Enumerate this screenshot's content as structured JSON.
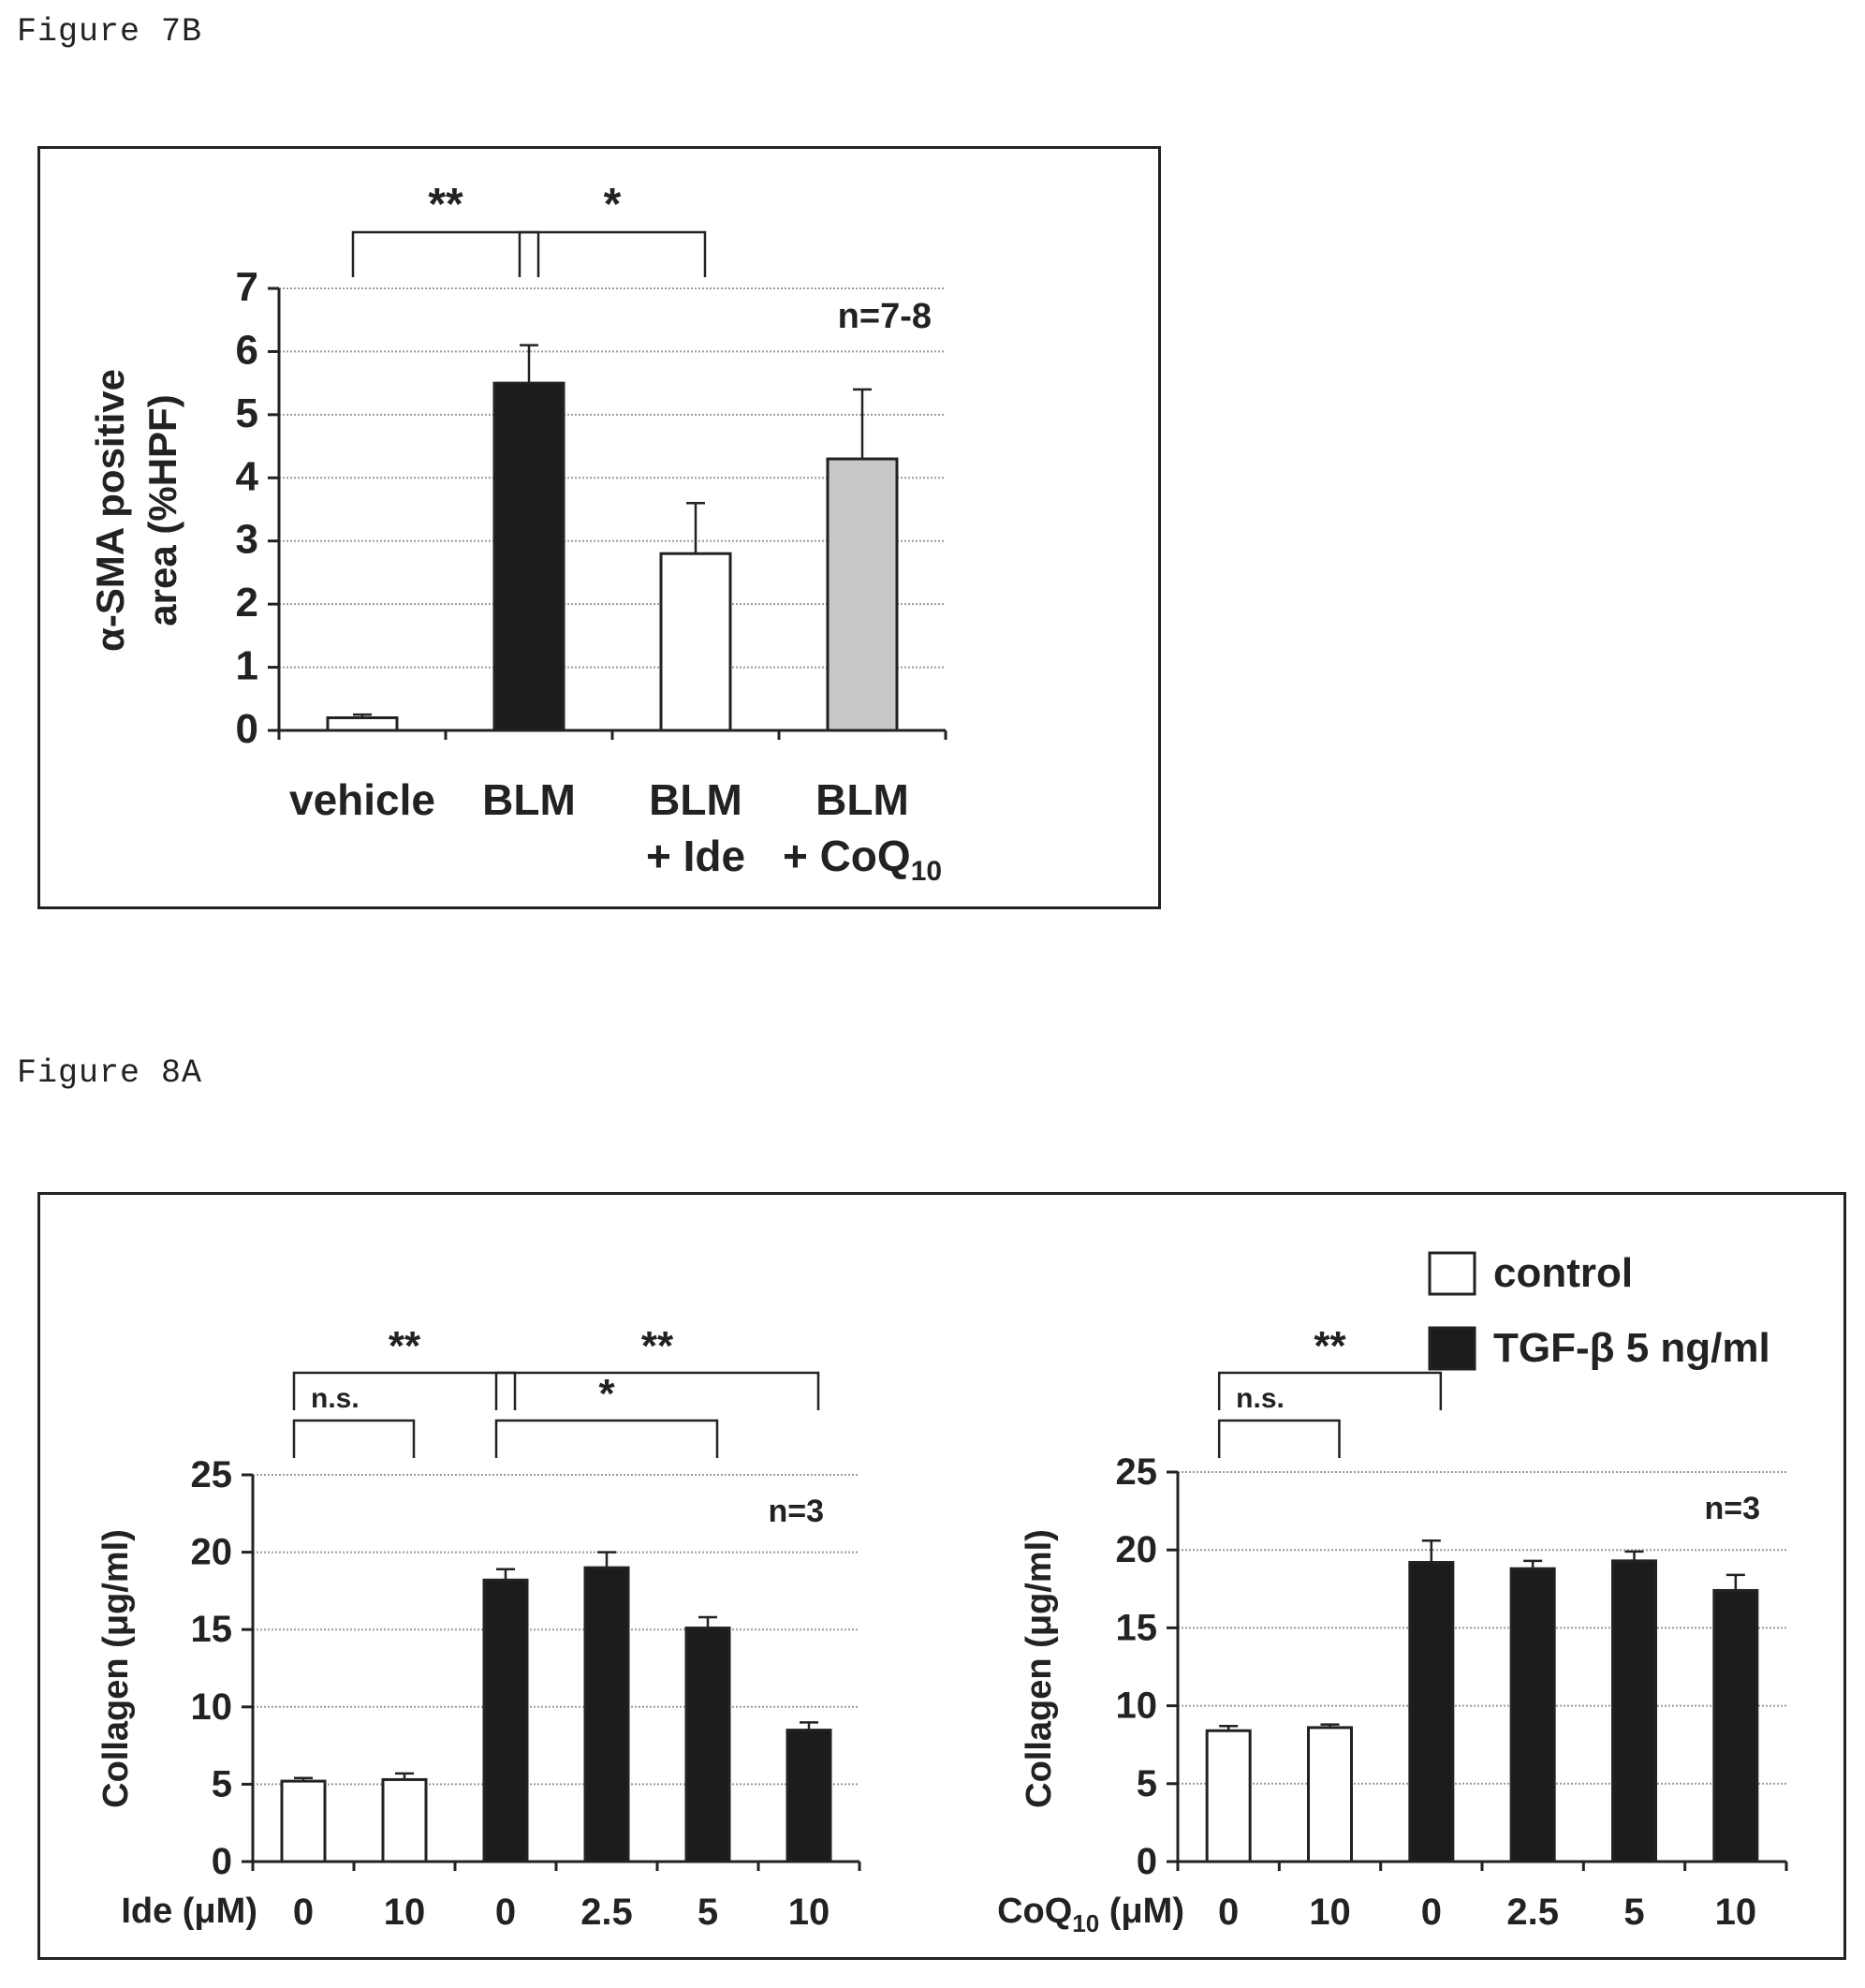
{
  "figures": [
    {
      "label": "Figure 7B"
    },
    {
      "label": "Figure 8A"
    }
  ],
  "chart_data": [
    {
      "type": "bar",
      "title": "",
      "ylabel_line1": "α-SMA positive",
      "ylabel_line2": "area (%HPF)",
      "ylim": [
        0,
        7
      ],
      "yticks": [
        "0",
        "1",
        "2",
        "3",
        "4",
        "5",
        "6",
        "7"
      ],
      "categories": [
        {
          "line1": "vehicle",
          "line2": ""
        },
        {
          "line1": "BLM",
          "line2": ""
        },
        {
          "line1": "BLM",
          "line2": "+ Ide"
        },
        {
          "line1": "BLM",
          "line2": "+ CoQ",
          "sub": "10"
        }
      ],
      "values": [
        0.2,
        5.5,
        2.8,
        4.3
      ],
      "errors": [
        0.05,
        0.6,
        0.8,
        1.1
      ],
      "colors": [
        "#ffffff",
        "#1c1c1c",
        "#ffffff",
        "#c8c8c8"
      ],
      "n_label": "n=7-8",
      "significance": [
        {
          "from": 0,
          "to": 1,
          "label": "**",
          "level": 1
        },
        {
          "from": 1,
          "to": 2,
          "label": "*",
          "level": 1
        }
      ]
    },
    {
      "type": "bar",
      "title": "",
      "ylabel": "Collagen (μg/ml)",
      "xlabel": "Ide (μM)",
      "ylim": [
        0,
        25
      ],
      "yticks": [
        "0",
        "5",
        "10",
        "15",
        "20",
        "25"
      ],
      "categories": [
        "0",
        "10",
        "0",
        "2.5",
        "5",
        "10"
      ],
      "values": [
        5.2,
        5.3,
        18.2,
        19.0,
        15.1,
        8.5
      ],
      "errors": [
        0.2,
        0.4,
        0.7,
        1.0,
        0.7,
        0.5
      ],
      "groups": [
        "control",
        "control",
        "tgf",
        "tgf",
        "tgf",
        "tgf"
      ],
      "n_label": "n=3",
      "significance": [
        {
          "from": 0,
          "to": 1,
          "label": "n.s.",
          "level": 1
        },
        {
          "from": 0,
          "to": 2,
          "label": "**",
          "level": 2
        },
        {
          "from": 2,
          "to": 4,
          "label": "*",
          "level": 1
        },
        {
          "from": 2,
          "to": 5,
          "label": "**",
          "level": 2
        }
      ]
    },
    {
      "type": "bar",
      "title": "",
      "ylabel": "Collagen (μg/ml)",
      "xlabel_main": "CoQ",
      "xlabel_sub": "10",
      "xlabel_unit": " (μM)",
      "ylim": [
        0,
        25
      ],
      "yticks": [
        "0",
        "5",
        "10",
        "15",
        "20",
        "25"
      ],
      "categories": [
        "0",
        "10",
        "0",
        "2.5",
        "5",
        "10"
      ],
      "values": [
        8.4,
        8.6,
        19.2,
        18.8,
        19.3,
        17.4
      ],
      "errors": [
        0.3,
        0.2,
        1.4,
        0.5,
        0.6,
        1.0
      ],
      "groups": [
        "control",
        "control",
        "tgf",
        "tgf",
        "tgf",
        "tgf"
      ],
      "n_label": "n=3",
      "significance": [
        {
          "from": 0,
          "to": 1,
          "label": "n.s.",
          "level": 1
        },
        {
          "from": 0,
          "to": 2,
          "label": "**",
          "level": 2
        }
      ],
      "legend": [
        {
          "key": "control",
          "label": "control",
          "color": "#ffffff"
        },
        {
          "key": "tgf",
          "label": "TGF-β 5 ng/ml",
          "color": "#1c1c1c"
        }
      ],
      "legend_position": "top-right"
    }
  ]
}
